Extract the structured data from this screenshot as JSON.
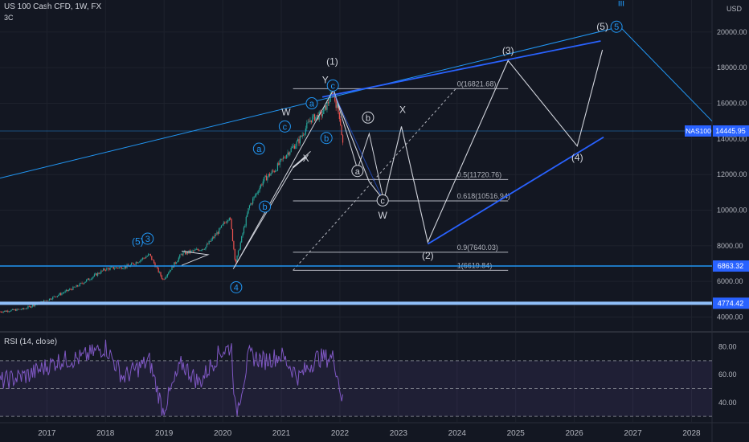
{
  "header": {
    "symbol_line": "US 100 Cash CFD, 1W, FX",
    "sub_line": "3C",
    "currency": "USD",
    "rsi_label": "RSI (14, close)"
  },
  "colors": {
    "background": "#131722",
    "candle_up": "#26a69a",
    "candle_down": "#ef5350",
    "wave_blue": "#2962ff",
    "trend_light_blue": "#2196f3",
    "wave_white": "#d1d4dc",
    "rsi_line": "#7e57c2",
    "price_tag": "#2962ff"
  },
  "chart_data": {
    "type": "line",
    "title": "",
    "price_axis": {
      "range": [
        3300,
        21800
      ],
      "ticks": [
        4000,
        6000,
        8000,
        10000,
        12000,
        14000,
        16000,
        18000,
        20000
      ],
      "tick_labels": [
        "4000.00",
        "6000.00",
        "8000.00",
        "10000.00",
        "12000.00",
        "14000.00",
        "16000.00",
        "18000.00",
        "20000.00"
      ]
    },
    "time_axis": {
      "range": [
        2016.2,
        2028.35
      ],
      "ticks": [
        2017,
        2018,
        2019,
        2020,
        2021,
        2022,
        2023,
        2024,
        2025,
        2026,
        2027,
        2028
      ],
      "tick_labels": [
        "2017",
        "2018",
        "2019",
        "2020",
        "2021",
        "2022",
        "2023",
        "2024",
        "2025",
        "2026",
        "2027",
        "2028"
      ]
    },
    "price_series_anchors": {
      "name": "",
      "x": [
        2016.2,
        2016.6,
        2017.0,
        2017.5,
        2018.0,
        2018.4,
        2018.75,
        2018.98,
        2019.3,
        2019.5,
        2019.7,
        2019.95,
        2020.12,
        2020.22,
        2020.45,
        2020.7,
        2020.9,
        2021.1,
        2021.3,
        2021.5,
        2021.7,
        2021.88,
        2022.0,
        2022.05
      ],
      "y": [
        4300,
        4450,
        4950,
        5700,
        6700,
        6850,
        7500,
        6100,
        7550,
        7700,
        7900,
        8900,
        9700,
        7000,
        10200,
        11700,
        12300,
        13200,
        13900,
        15100,
        15400,
        16600,
        15200,
        13700
      ]
    },
    "horizontal_levels": [
      {
        "label": "0(16821.68)",
        "value": 16821.68
      },
      {
        "label": "0.5(11720.76)",
        "value": 11720.76
      },
      {
        "label": "0.618(10516.94)",
        "value": 10516.94
      },
      {
        "label": "0.9(7640.03)",
        "value": 7640.03
      },
      {
        "label": "1(6619.84)",
        "value": 6619.84
      }
    ],
    "price_tags": [
      {
        "label": "NAS100",
        "value": "14445.95",
        "price": 14445.95
      },
      {
        "label": "",
        "value": "6863.32",
        "price": 6863.32
      },
      {
        "label": "",
        "value": "4774.42",
        "price": 4774.42
      }
    ],
    "wave_labels": [
      {
        "text": "(1)",
        "x": 2021.87,
        "y": 18350,
        "circled": false,
        "color": "white"
      },
      {
        "text": "Y",
        "x": 2021.75,
        "y": 17300,
        "circled": false,
        "color": "white"
      },
      {
        "text": "c",
        "x": 2021.88,
        "y": 17000,
        "circled": true,
        "color": "blue"
      },
      {
        "text": "W",
        "x": 2021.08,
        "y": 15500,
        "circled": false,
        "color": "white"
      },
      {
        "text": "a",
        "x": 2021.52,
        "y": 16000,
        "circled": true,
        "color": "blue"
      },
      {
        "text": "c",
        "x": 2021.06,
        "y": 14700,
        "circled": true,
        "color": "blue"
      },
      {
        "text": "b",
        "x": 2021.77,
        "y": 14050,
        "circled": true,
        "color": "blue"
      },
      {
        "text": "a",
        "x": 2020.62,
        "y": 13450,
        "circled": true,
        "color": "blue"
      },
      {
        "text": "X",
        "x": 2021.42,
        "y": 12900,
        "circled": false,
        "color": "white"
      },
      {
        "text": "b",
        "x": 2020.72,
        "y": 10200,
        "circled": true,
        "color": "blue"
      },
      {
        "text": "(5)",
        "x": 2018.55,
        "y": 8250,
        "circled": false,
        "color": "blue"
      },
      {
        "text": "3",
        "x": 2018.72,
        "y": 8400,
        "circled": true,
        "color": "blue"
      },
      {
        "text": "4",
        "x": 2020.23,
        "y": 5670,
        "circled": true,
        "color": "blue"
      },
      {
        "text": "b",
        "x": 2022.48,
        "y": 15200,
        "circled": true,
        "color": "white"
      },
      {
        "text": "X",
        "x": 2023.07,
        "y": 15650,
        "circled": false,
        "color": "white"
      },
      {
        "text": "a",
        "x": 2022.3,
        "y": 12200,
        "circled": true,
        "color": "white"
      },
      {
        "text": "c",
        "x": 2022.73,
        "y": 10550,
        "circled": true,
        "color": "white"
      },
      {
        "text": "W",
        "x": 2022.73,
        "y": 9700,
        "circled": false,
        "color": "white"
      },
      {
        "text": "(3)",
        "x": 2024.87,
        "y": 18950,
        "circled": false,
        "color": "white"
      },
      {
        "text": "(2)",
        "x": 2023.5,
        "y": 7450,
        "circled": false,
        "color": "white"
      },
      {
        "text": "(4)",
        "x": 2026.05,
        "y": 12950,
        "circled": false,
        "color": "white"
      },
      {
        "text": "(5)",
        "x": 2026.48,
        "y": 20300,
        "circled": false,
        "color": "white"
      },
      {
        "text": "5",
        "x": 2026.72,
        "y": 20300,
        "circled": true,
        "color": "blue"
      },
      {
        "text": "iii",
        "x": 2026.8,
        "y": 21650,
        "circled": false,
        "color": "blue"
      }
    ],
    "projection_path": {
      "x": [
        2021.9,
        2022.5,
        2022.75,
        2023.05,
        2023.5,
        2024.87,
        2026.05,
        2026.48
      ],
      "y": [
        16600,
        11600,
        10550,
        14700,
        8200,
        18400,
        13600,
        19000
      ]
    },
    "rsi": {
      "name": "RSI (14, close)",
      "range": [
        26,
        89
      ],
      "ticks": [
        40,
        60,
        80
      ],
      "tick_labels": [
        "40.00",
        "60.00",
        "80.00"
      ],
      "band": [
        30,
        70
      ],
      "anchors_x": [
        2016.2,
        2016.7,
        2017.2,
        2017.6,
        2018.0,
        2018.3,
        2018.75,
        2018.98,
        2019.3,
        2019.6,
        2019.95,
        2020.15,
        2020.22,
        2020.45,
        2020.7,
        2021.0,
        2021.3,
        2021.6,
        2021.9,
        2022.05
      ],
      "anchors_y": [
        55,
        60,
        70,
        72,
        80,
        58,
        70,
        34,
        68,
        54,
        76,
        80,
        30,
        74,
        70,
        74,
        58,
        72,
        72,
        40
      ]
    }
  }
}
